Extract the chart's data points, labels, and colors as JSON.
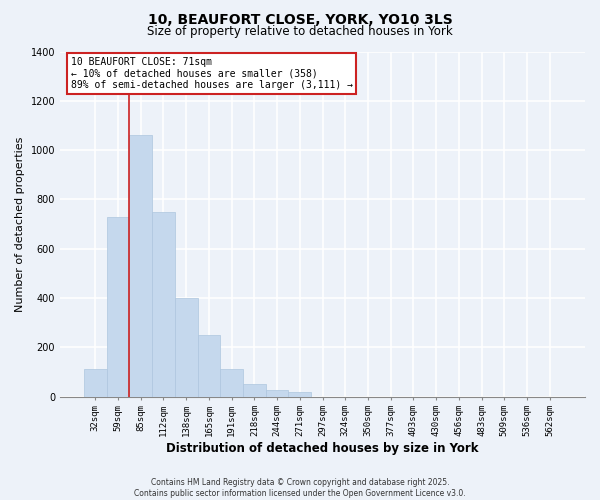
{
  "title_line1": "10, BEAUFORT CLOSE, YORK, YO10 3LS",
  "title_line2": "Size of property relative to detached houses in York",
  "xlabel": "Distribution of detached houses by size in York",
  "ylabel": "Number of detached properties",
  "bar_labels": [
    "32sqm",
    "59sqm",
    "85sqm",
    "112sqm",
    "138sqm",
    "165sqm",
    "191sqm",
    "218sqm",
    "244sqm",
    "271sqm",
    "297sqm",
    "324sqm",
    "350sqm",
    "377sqm",
    "403sqm",
    "430sqm",
    "456sqm",
    "483sqm",
    "509sqm",
    "536sqm",
    "562sqm"
  ],
  "bar_values": [
    110,
    730,
    1060,
    750,
    400,
    248,
    112,
    50,
    28,
    18,
    0,
    0,
    0,
    0,
    0,
    0,
    0,
    0,
    0,
    0,
    0
  ],
  "bar_color": "#c5d8ed",
  "bar_edge_color": "#aec6de",
  "vline_x": 1.5,
  "vline_color": "#cc2222",
  "annotation_title": "10 BEAUFORT CLOSE: 71sqm",
  "annotation_line2": "← 10% of detached houses are smaller (358)",
  "annotation_line3": "89% of semi-detached houses are larger (3,111) →",
  "annotation_box_facecolor": "#ffffff",
  "annotation_box_edgecolor": "#cc2222",
  "ylim": [
    0,
    1400
  ],
  "yticks": [
    0,
    200,
    400,
    600,
    800,
    1000,
    1200,
    1400
  ],
  "footer_line1": "Contains HM Land Registry data © Crown copyright and database right 2025.",
  "footer_line2": "Contains public sector information licensed under the Open Government Licence v3.0.",
  "background_color": "#edf2f9",
  "grid_color": "#ffffff",
  "title_fontsize": 10,
  "subtitle_fontsize": 8.5,
  "ylabel_fontsize": 8,
  "xlabel_fontsize": 8.5,
  "tick_fontsize": 6.5,
  "annot_fontsize": 7,
  "footer_fontsize": 5.5
}
